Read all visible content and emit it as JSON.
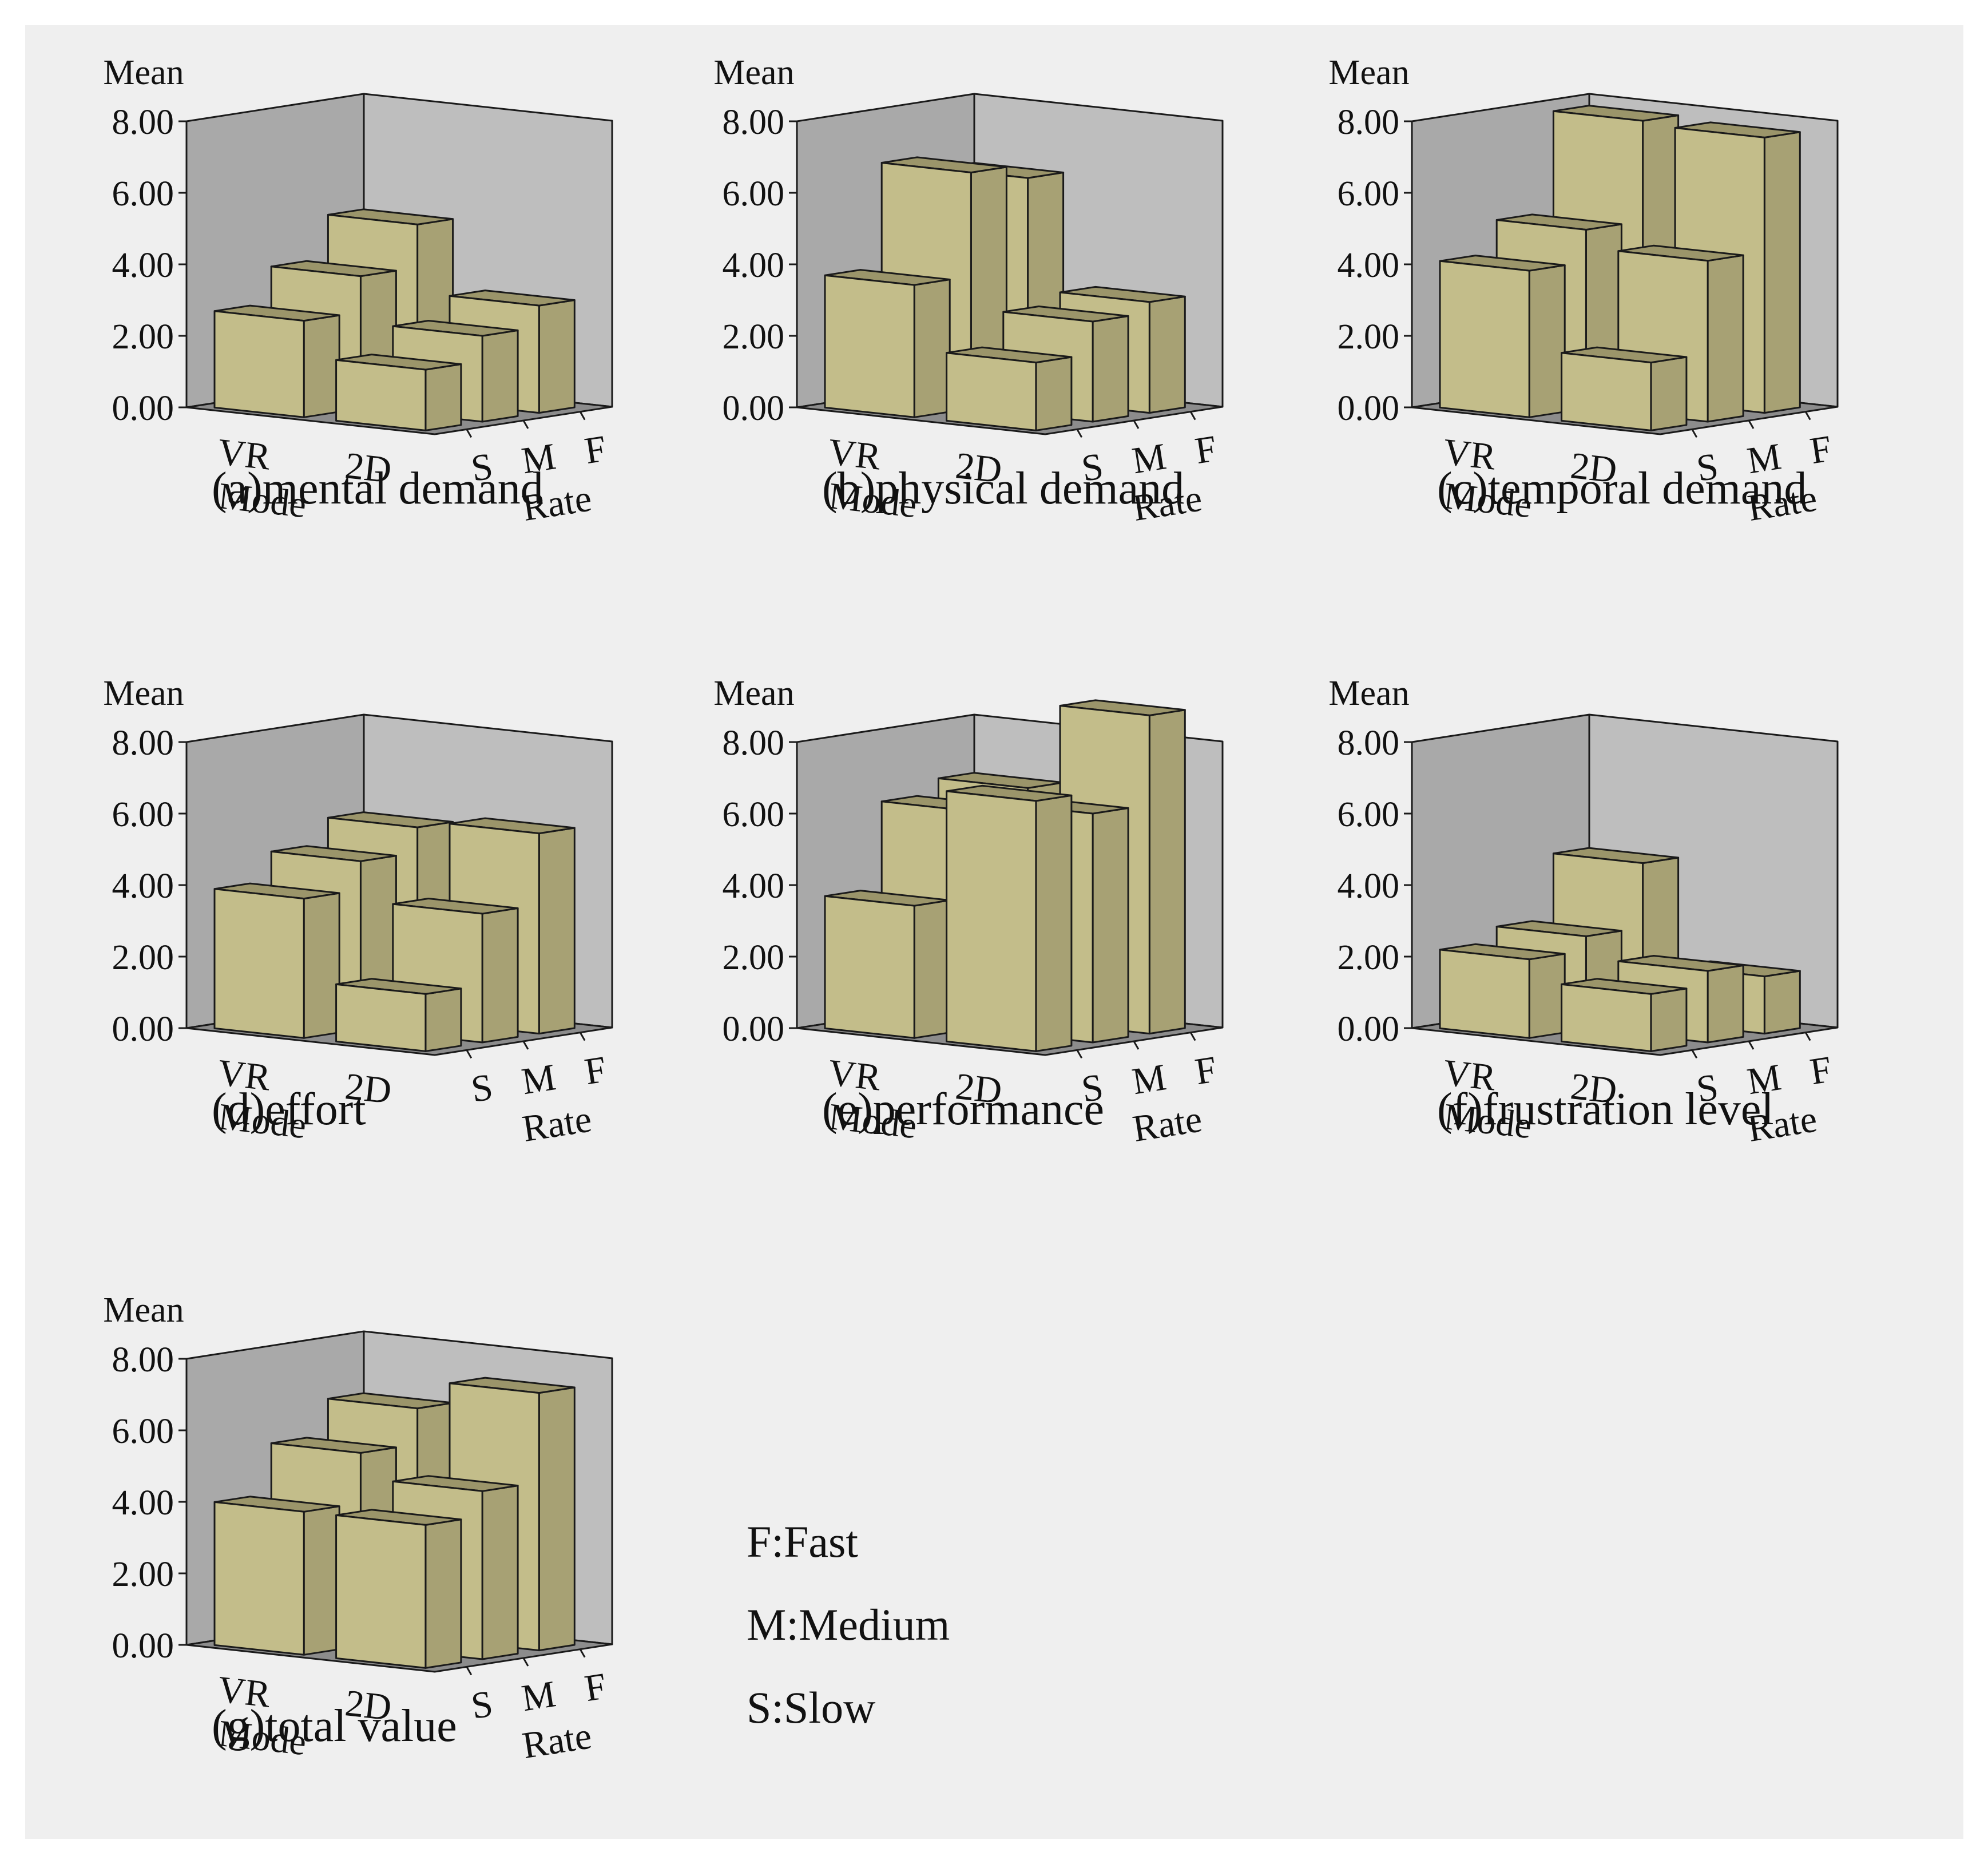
{
  "chart_data": [
    {
      "type": "bar3d",
      "title": "(a)mental demand",
      "zlabel": "Mean",
      "xlabel": "Mode",
      "ylabel": "Rate",
      "modes": [
        "VR",
        "2D"
      ],
      "rates": [
        "S",
        "M",
        "F"
      ],
      "values": [
        [
          2.7,
          3.7,
          4.9
        ],
        [
          1.7,
          2.4,
          3.0
        ]
      ],
      "zticks": [
        "0.00",
        "2.00",
        "4.00",
        "6.00",
        "8.00"
      ],
      "zlim": [
        0,
        8
      ]
    },
    {
      "type": "bar3d",
      "title": "(b)physical demand",
      "zlabel": "Mean",
      "xlabel": "Mode",
      "ylabel": "Rate",
      "modes": [
        "VR",
        "2D"
      ],
      "rates": [
        "S",
        "M",
        "F"
      ],
      "values": [
        [
          3.7,
          6.6,
          6.2
        ],
        [
          1.9,
          2.8,
          3.1
        ]
      ],
      "zticks": [
        "0.00",
        "2.00",
        "4.00",
        "6.00",
        "8.00"
      ],
      "zlim": [
        0,
        8
      ]
    },
    {
      "type": "bar3d",
      "title": "(c)temporal demand",
      "zlabel": "Mean",
      "xlabel": "Mode",
      "ylabel": "Rate",
      "modes": [
        "VR",
        "2D"
      ],
      "rates": [
        "S",
        "M",
        "F"
      ],
      "values": [
        [
          4.1,
          5.0,
          7.8
        ],
        [
          1.9,
          4.5,
          7.7
        ]
      ],
      "zticks": [
        "0.00",
        "2.00",
        "4.00",
        "6.00",
        "8.00"
      ],
      "zlim": [
        0,
        8
      ]
    },
    {
      "type": "bar3d",
      "title": "(d)effort",
      "zlabel": "Mean",
      "xlabel": "Mode",
      "ylabel": "Rate",
      "modes": [
        "VR",
        "2D"
      ],
      "rates": [
        "S",
        "M",
        "F"
      ],
      "values": [
        [
          3.9,
          4.7,
          5.4
        ],
        [
          1.6,
          3.6,
          5.6
        ]
      ],
      "zticks": [
        "0.00",
        "2.00",
        "4.00",
        "6.00",
        "8.00"
      ],
      "zlim": [
        0,
        8
      ]
    },
    {
      "type": "bar3d",
      "title": "(e)performance",
      "zlabel": "Mean",
      "xlabel": "Mode",
      "ylabel": "Rate",
      "modes": [
        "VR",
        "2D"
      ],
      "rates": [
        "S",
        "M",
        "F"
      ],
      "values": [
        [
          3.7,
          6.1,
          6.5
        ],
        [
          7.0,
          6.4,
          8.9
        ]
      ],
      "zticks": [
        "0.00",
        "2.00",
        "4.00",
        "6.00",
        "8.00"
      ],
      "zlim": [
        0,
        8
      ]
    },
    {
      "type": "bar3d",
      "title": "(f)frustration level",
      "zlabel": "Mean",
      "xlabel": "Mode",
      "ylabel": "Rate",
      "modes": [
        "VR",
        "2D"
      ],
      "rates": [
        "S",
        "M",
        "F"
      ],
      "values": [
        [
          2.2,
          2.6,
          4.4
        ],
        [
          1.6,
          2.0,
          1.6
        ]
      ],
      "zticks": [
        "0.00",
        "2.00",
        "4.00",
        "6.00",
        "8.00"
      ],
      "zlim": [
        0,
        8
      ]
    },
    {
      "type": "bar3d",
      "title": "(g)total value",
      "zlabel": "Mean",
      "xlabel": "Mode",
      "ylabel": "Rate",
      "modes": [
        "VR",
        "2D"
      ],
      "rates": [
        "S",
        "M",
        "F"
      ],
      "values": [
        [
          4.0,
          5.4,
          6.4
        ],
        [
          4.0,
          4.7,
          7.2
        ]
      ],
      "zticks": [
        "0.00",
        "2.00",
        "4.00",
        "6.00",
        "8.00"
      ],
      "zlim": [
        0,
        8
      ]
    }
  ],
  "legend": [
    "F:Fast",
    "M:Medium",
    "S:Slow"
  ],
  "colors": {
    "background": "#efefef",
    "left_wall": "#a9a9a9",
    "back_wall": "#bebebe",
    "floor": "#8c8c8c",
    "bar_front": "#c3bd8a",
    "bar_side": "#a7a174",
    "bar_top": "#9b956a",
    "edge": "#1a1a1a"
  }
}
